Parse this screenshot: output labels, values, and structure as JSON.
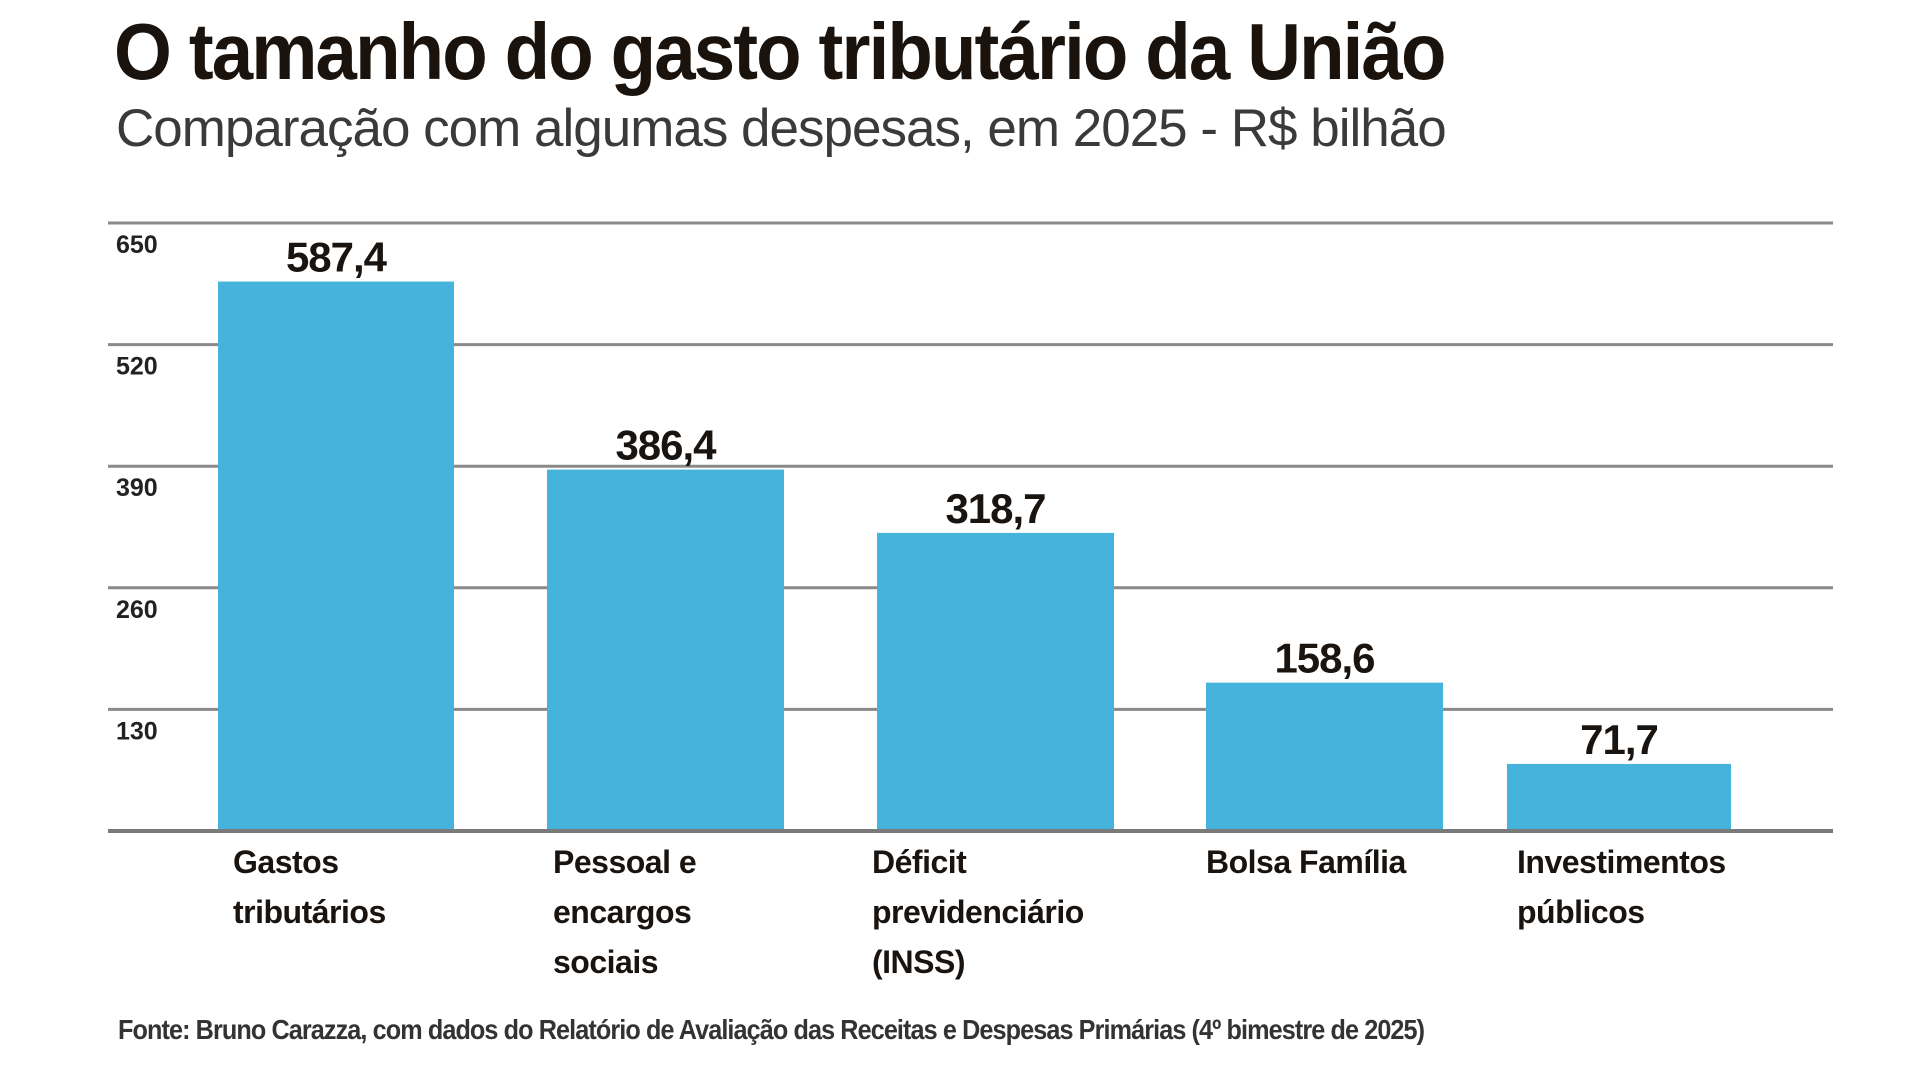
{
  "chart_data": {
    "type": "bar",
    "title": "O tamanho do gasto tributário da União",
    "subtitle": "Comparação com algumas despesas, em 2025 - R$ bilhão",
    "categories": [
      [
        "Gastos",
        "tributários"
      ],
      [
        "Pessoal e",
        "encargos",
        "sociais"
      ],
      [
        "Déficit",
        "previdenciário",
        "(INSS)"
      ],
      [
        "Bolsa Família"
      ],
      [
        "Investimentos",
        "públicos"
      ]
    ],
    "values": [
      587.4,
      386.4,
      318.7,
      158.6,
      71.7
    ],
    "value_labels": [
      "587,4",
      "386,4",
      "318,7",
      "158,6",
      "71,7"
    ],
    "yticks": [
      130,
      260,
      390,
      520,
      650
    ],
    "ylim": [
      0,
      650
    ],
    "grid": true,
    "xlabel": "",
    "ylabel": "",
    "source": "Fonte: Bruno Carazza, com dados do Relatório de Avaliação das Receitas e Despesas Primárias (4º bimestre de 2025)",
    "colors": {
      "bar": "#46b3dc",
      "grid": "#8a8a8a",
      "axis": "#7a7a7a"
    }
  }
}
